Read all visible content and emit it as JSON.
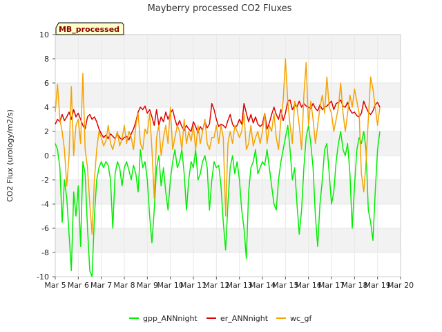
{
  "chart_data": {
    "type": "line",
    "title": "Mayberry processed CO2 Fluxes",
    "xlabel": "",
    "ylabel": "CO2 Flux (urology/m2/s)",
    "site_badge": "MB_processed",
    "xlim": [
      5,
      20
    ],
    "ylim": [
      -10,
      10
    ],
    "x_ticks": [
      5,
      6,
      7,
      8,
      9,
      10,
      11,
      12,
      13,
      14,
      15,
      16,
      17,
      18,
      19,
      20
    ],
    "x_tick_labels": [
      "Mar 5",
      "Mar 6",
      "Mar 7",
      "Mar 8",
      "Mar 9",
      "Mar 10",
      "Mar 11",
      "Mar 12",
      "Mar 13",
      "Mar 14",
      "Mar 15",
      "Mar 16",
      "Mar 17",
      "Mar 18",
      "Mar 19",
      "Mar 20"
    ],
    "y_ticks": [
      -10,
      -8,
      -6,
      -4,
      -2,
      0,
      2,
      4,
      6,
      8,
      10
    ],
    "y_tick_labels": [
      "-10",
      "-8",
      "-6",
      "-4",
      "-2",
      "0",
      "2",
      "4",
      "6",
      "8",
      "10"
    ],
    "grid": true,
    "legend_position": "bottom",
    "series": [
      {
        "name": "gpp_ANNnight",
        "color": "#00ee00",
        "x": [
          5.0,
          5.1,
          5.2,
          5.3,
          5.4,
          5.5,
          5.6,
          5.7,
          5.8,
          5.9,
          6.0,
          6.1,
          6.2,
          6.3,
          6.4,
          6.5,
          6.6,
          6.7,
          6.8,
          6.9,
          7.0,
          7.1,
          7.2,
          7.3,
          7.4,
          7.5,
          7.6,
          7.7,
          7.8,
          7.9,
          8.0,
          8.1,
          8.2,
          8.3,
          8.4,
          8.5,
          8.6,
          8.7,
          8.8,
          8.9,
          9.0,
          9.1,
          9.2,
          9.3,
          9.4,
          9.5,
          9.6,
          9.7,
          9.8,
          9.9,
          10.0,
          10.1,
          10.2,
          10.3,
          10.4,
          10.5,
          10.6,
          10.7,
          10.8,
          10.9,
          11.0,
          11.1,
          11.2,
          11.3,
          11.4,
          11.5,
          11.6,
          11.7,
          11.8,
          11.9,
          12.0,
          12.1,
          12.2,
          12.3,
          12.4,
          12.5,
          12.6,
          12.7,
          12.8,
          12.9,
          13.0,
          13.1,
          13.2,
          13.3,
          13.4,
          13.5,
          13.6,
          13.7,
          13.8,
          13.9,
          14.0,
          14.1,
          14.2,
          14.3,
          14.4,
          14.5,
          14.6,
          14.7,
          14.8,
          14.9,
          15.0,
          15.1,
          15.2,
          15.3,
          15.4,
          15.5,
          15.6,
          15.7,
          15.8,
          15.9,
          16.0,
          16.1,
          16.2,
          16.3,
          16.4,
          16.5,
          16.6,
          16.7,
          16.8,
          16.9,
          17.0,
          17.1,
          17.2,
          17.3,
          17.4,
          17.5,
          17.6,
          17.7,
          17.8,
          17.9,
          18.0,
          18.1,
          18.2,
          18.3,
          18.4,
          18.5,
          18.6,
          18.7,
          18.8,
          18.9,
          19.0,
          19.1
        ],
        "y": [
          1.0,
          0.5,
          -1.0,
          -5.5,
          -2.0,
          -3.5,
          -6.5,
          -9.5,
          -3.0,
          -5.0,
          -2.5,
          -7.5,
          -0.5,
          -1.5,
          -6.0,
          -9.5,
          -10.0,
          -5.0,
          -2.0,
          -1.0,
          -0.5,
          -1.0,
          -0.5,
          -0.8,
          -2.0,
          -6.0,
          -1.5,
          -0.5,
          -1.0,
          -2.5,
          -1.0,
          -0.5,
          -1.2,
          -2.0,
          -0.8,
          -1.5,
          -3.0,
          0.5,
          -1.0,
          -0.5,
          -2.0,
          -5.0,
          -7.2,
          -4.5,
          -1.0,
          0.0,
          -2.5,
          -1.0,
          -3.0,
          -4.5,
          -2.0,
          -0.5,
          0.5,
          -1.0,
          -0.5,
          0.5,
          -1.5,
          -4.5,
          -2.0,
          -0.5,
          -1.0,
          0.5,
          -2.0,
          -1.5,
          -0.5,
          0.0,
          -1.0,
          -4.5,
          -2.0,
          -0.5,
          -1.0,
          -0.8,
          -2.5,
          -5.5,
          -7.8,
          -4.0,
          -1.0,
          0.0,
          -1.5,
          -0.5,
          -2.0,
          -4.5,
          -6.0,
          -8.5,
          -3.0,
          -1.0,
          -0.5,
          0.5,
          -1.5,
          -1.0,
          -0.5,
          -0.8,
          0.5,
          -1.0,
          -2.5,
          -4.0,
          -4.5,
          -2.0,
          -0.5,
          0.5,
          1.5,
          2.5,
          0.5,
          -2.0,
          -1.0,
          -4.0,
          -6.5,
          -4.5,
          -1.0,
          1.5,
          2.5,
          1.0,
          -1.0,
          -5.0,
          -7.5,
          -4.0,
          -2.0,
          0.5,
          1.0,
          -1.5,
          -4.0,
          -3.0,
          -0.5,
          1.0,
          2.0,
          0.5,
          0.0,
          1.0,
          -1.5,
          -6.0,
          -2.5,
          0.5,
          1.5,
          1.0,
          2.0,
          0.5,
          -4.5,
          -5.5,
          -7.0,
          -3.0,
          0.5,
          2.0
        ]
      },
      {
        "name": "er_ANNnight",
        "color": "#dd0000",
        "x": [
          5.0,
          5.1,
          5.2,
          5.3,
          5.4,
          5.5,
          5.6,
          5.7,
          5.8,
          5.9,
          6.0,
          6.1,
          6.2,
          6.3,
          6.4,
          6.5,
          6.6,
          6.7,
          6.8,
          6.9,
          7.0,
          7.1,
          7.2,
          7.3,
          7.4,
          7.5,
          7.6,
          7.7,
          7.8,
          7.9,
          8.0,
          8.1,
          8.2,
          8.3,
          8.4,
          8.5,
          8.6,
          8.7,
          8.8,
          8.9,
          9.0,
          9.1,
          9.2,
          9.3,
          9.4,
          9.5,
          9.6,
          9.7,
          9.8,
          9.9,
          10.0,
          10.1,
          10.2,
          10.3,
          10.4,
          10.5,
          10.6,
          10.7,
          10.8,
          10.9,
          11.0,
          11.1,
          11.2,
          11.3,
          11.4,
          11.5,
          11.6,
          11.7,
          11.8,
          11.9,
          12.0,
          12.1,
          12.2,
          12.3,
          12.4,
          12.5,
          12.6,
          12.7,
          12.8,
          12.9,
          13.0,
          13.1,
          13.2,
          13.3,
          13.4,
          13.5,
          13.6,
          13.7,
          13.8,
          13.9,
          14.0,
          14.1,
          14.2,
          14.3,
          14.4,
          14.5,
          14.6,
          14.7,
          14.8,
          14.9,
          15.0,
          15.1,
          15.2,
          15.3,
          15.4,
          15.5,
          15.6,
          15.7,
          15.8,
          15.9,
          16.0,
          16.1,
          16.2,
          16.3,
          16.4,
          16.5,
          16.6,
          16.7,
          16.8,
          16.9,
          17.0,
          17.1,
          17.2,
          17.3,
          17.4,
          17.5,
          17.6,
          17.7,
          17.8,
          17.9,
          18.0,
          18.1,
          18.2,
          18.3,
          18.4,
          18.5,
          18.6,
          18.7,
          18.8,
          18.9,
          19.0,
          19.1
        ],
        "y": [
          2.6,
          3.0,
          2.8,
          3.4,
          2.9,
          3.2,
          3.6,
          3.0,
          3.8,
          3.2,
          3.5,
          3.0,
          2.5,
          2.2,
          3.2,
          3.4,
          3.0,
          3.2,
          2.8,
          2.2,
          1.8,
          1.5,
          1.7,
          1.4,
          1.8,
          1.6,
          1.4,
          1.8,
          1.5,
          1.3,
          1.5,
          1.6,
          1.3,
          1.8,
          2.2,
          2.8,
          3.6,
          4.0,
          3.8,
          4.1,
          3.5,
          3.8,
          3.2,
          2.5,
          3.8,
          2.5,
          3.2,
          2.8,
          3.6,
          3.0,
          3.5,
          3.8,
          3.0,
          2.4,
          2.9,
          2.4,
          2.1,
          2.5,
          2.2,
          2.0,
          2.8,
          2.4,
          1.9,
          2.4,
          2.1,
          2.8,
          2.3,
          2.6,
          4.3,
          3.8,
          3.0,
          2.4,
          2.6,
          2.5,
          2.3,
          2.9,
          3.4,
          2.6,
          2.3,
          2.5,
          3.0,
          2.6,
          4.3,
          3.5,
          2.8,
          3.4,
          2.7,
          3.2,
          2.6,
          2.4,
          2.6,
          3.5,
          2.2,
          2.7,
          3.4,
          4.0,
          3.4,
          3.0,
          3.8,
          2.9,
          3.5,
          4.5,
          4.6,
          3.8,
          4.2,
          4.0,
          4.5,
          4.0,
          4.3,
          4.1,
          4.0,
          3.9,
          4.3,
          3.9,
          3.7,
          4.2,
          3.8,
          4.0,
          4.1,
          4.3,
          4.5,
          3.8,
          4.3,
          4.4,
          4.6,
          4.1,
          4.0,
          4.4,
          3.8,
          3.5,
          3.6,
          3.3,
          3.2,
          3.5,
          4.5,
          4.0,
          3.6,
          3.4,
          3.7,
          4.2,
          4.4,
          4.0
        ]
      },
      {
        "name": "wc_gf",
        "color": "#f5a300",
        "x": [
          5.0,
          5.1,
          5.2,
          5.3,
          5.4,
          5.5,
          5.6,
          5.7,
          5.8,
          5.9,
          6.0,
          6.1,
          6.2,
          6.3,
          6.4,
          6.5,
          6.6,
          6.7,
          6.8,
          6.9,
          7.0,
          7.1,
          7.2,
          7.3,
          7.4,
          7.5,
          7.6,
          7.7,
          7.8,
          7.9,
          8.0,
          8.1,
          8.2,
          8.3,
          8.4,
          8.5,
          8.6,
          8.7,
          8.8,
          8.9,
          9.0,
          9.1,
          9.2,
          9.3,
          9.4,
          9.5,
          9.6,
          9.7,
          9.8,
          9.9,
          10.0,
          10.1,
          10.2,
          10.3,
          10.4,
          10.5,
          10.6,
          10.7,
          10.8,
          10.9,
          11.0,
          11.1,
          11.2,
          11.3,
          11.4,
          11.5,
          11.6,
          11.7,
          11.8,
          11.9,
          12.0,
          12.1,
          12.2,
          12.3,
          12.4,
          12.5,
          12.6,
          12.7,
          12.8,
          12.9,
          13.0,
          13.1,
          13.2,
          13.3,
          13.4,
          13.5,
          13.6,
          13.7,
          13.8,
          13.9,
          14.0,
          14.1,
          14.2,
          14.3,
          14.4,
          14.5,
          14.6,
          14.7,
          14.8,
          14.9,
          15.0,
          15.1,
          15.2,
          15.3,
          15.4,
          15.5,
          15.6,
          15.7,
          15.8,
          15.9,
          16.0,
          16.1,
          16.2,
          16.3,
          16.4,
          16.5,
          16.6,
          16.7,
          16.8,
          16.9,
          17.0,
          17.1,
          17.2,
          17.3,
          17.4,
          17.5,
          17.6,
          17.7,
          17.8,
          17.9,
          18.0,
          18.1,
          18.2,
          18.3,
          18.4,
          18.5,
          18.6,
          18.7,
          18.8,
          18.9,
          19.0,
          19.1
        ],
        "y": [
          3.6,
          5.9,
          3.0,
          2.0,
          0.5,
          -2.5,
          0.0,
          5.7,
          0.0,
          2.5,
          3.0,
          1.0,
          6.8,
          0.5,
          -1.0,
          -4.0,
          -6.5,
          -2.0,
          0.5,
          2.0,
          1.5,
          0.8,
          1.2,
          2.5,
          1.0,
          0.5,
          1.3,
          2.0,
          0.8,
          1.4,
          2.5,
          1.0,
          2.0,
          1.5,
          0.5,
          2.5,
          3.5,
          1.0,
          0.5,
          2.2,
          1.8,
          3.5,
          0.5,
          -3.5,
          1.5,
          2.5,
          0.0,
          1.5,
          2.5,
          1.0,
          4.0,
          0.5,
          1.5,
          2.5,
          2.0,
          0.5,
          3.0,
          1.0,
          2.0,
          1.2,
          2.5,
          0.5,
          2.5,
          1.0,
          2.0,
          3.0,
          1.0,
          0.5,
          1.5,
          1.5,
          2.5,
          1.0,
          2.5,
          1.5,
          -5.0,
          1.0,
          2.0,
          1.0,
          2.5,
          2.0,
          1.5,
          2.0,
          3.5,
          0.5,
          1.0,
          2.5,
          0.8,
          1.5,
          2.0,
          1.0,
          2.0,
          3.5,
          1.0,
          2.5,
          2.0,
          3.5,
          1.5,
          0.5,
          3.0,
          4.5,
          8.0,
          4.5,
          2.5,
          1.0,
          4.5,
          4.0,
          2.5,
          0.5,
          5.0,
          7.7,
          2.5,
          4.5,
          3.0,
          1.0,
          2.5,
          4.0,
          5.0,
          3.5,
          6.5,
          4.0,
          3.5,
          2.0,
          3.0,
          4.0,
          6.0,
          3.5,
          2.0,
          3.5,
          5.0,
          4.0,
          5.5,
          4.5,
          3.5,
          -1.5,
          -3.0,
          -0.5,
          3.0,
          6.5,
          5.5,
          4.0,
          2.5,
          4.0
        ]
      }
    ]
  }
}
